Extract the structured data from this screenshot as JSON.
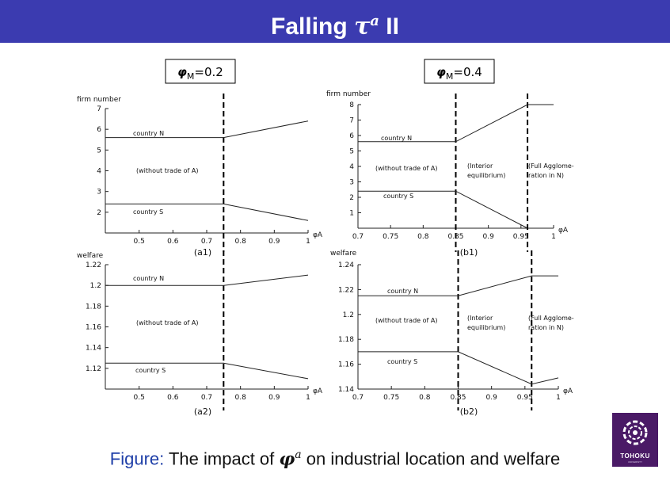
{
  "title": {
    "main": "Falling",
    "tau": "τ",
    "sup": "a",
    "suffix": "II"
  },
  "caption": {
    "label": "Figure:",
    "before": " The impact of ",
    "phi": "φ",
    "sup": "a",
    "after": " on industrial location and welfare"
  },
  "logo": {
    "name": "TOHOKU",
    "sub": "UNIVERSITY"
  },
  "colors": {
    "title_bg": "#3b3bb0",
    "caption_label": "#1f3fa8",
    "logo_bg": "#4a1a66"
  },
  "chart_data": [
    {
      "id": "a1",
      "type": "line",
      "panel_label": "(a1)",
      "param_label": "φM=0.2",
      "ylabel": "firm number",
      "xlabel": "φA",
      "xlim": [
        0.4,
        1.0
      ],
      "ylim": [
        1,
        7
      ],
      "xticks": [
        "0.5",
        "0.6",
        "0.7",
        "0.8",
        "0.9",
        "1"
      ],
      "yticks": [
        "2",
        "3",
        "4",
        "5",
        "6",
        "7"
      ],
      "vlines": [
        0.75
      ],
      "series": [
        {
          "name": "country N",
          "x": [
            0.4,
            0.75,
            1.0
          ],
          "y": [
            5.6,
            5.6,
            6.4
          ]
        },
        {
          "name": "country S",
          "x": [
            0.4,
            0.75,
            1.0
          ],
          "y": [
            2.4,
            2.4,
            1.6
          ]
        }
      ],
      "annotations": [
        "(without trade of A)"
      ]
    },
    {
      "id": "b1",
      "type": "line",
      "panel_label": "(b1)",
      "param_label": "φM=0.4",
      "ylabel": "firm number",
      "xlabel": "φA",
      "xlim": [
        0.7,
        1.0
      ],
      "ylim": [
        0,
        8
      ],
      "xticks": [
        "0.7",
        "0.75",
        "0.8",
        "0.85",
        "0.9",
        "0.95",
        "1"
      ],
      "yticks": [
        "1",
        "2",
        "3",
        "4",
        "5",
        "6",
        "7",
        "8"
      ],
      "vlines": [
        0.85,
        0.96
      ],
      "series": [
        {
          "name": "country N",
          "x": [
            0.7,
            0.85,
            0.96,
            1.0
          ],
          "y": [
            5.6,
            5.6,
            8.0,
            8.0
          ]
        },
        {
          "name": "country S",
          "x": [
            0.7,
            0.85,
            0.96
          ],
          "y": [
            2.4,
            2.4,
            0.0
          ]
        }
      ],
      "annotations": [
        "(without trade of A)",
        "(Interior",
        "equilibrium)",
        "(Full Agglome-",
        "ration in N)"
      ]
    },
    {
      "id": "a2",
      "type": "line",
      "panel_label": "(a2)",
      "ylabel": "welfare",
      "xlabel": "φA",
      "xlim": [
        0.4,
        1.0
      ],
      "ylim": [
        1.1,
        1.22
      ],
      "xticks": [
        "0.5",
        "0.6",
        "0.7",
        "0.8",
        "0.9",
        "1"
      ],
      "yticks": [
        "1.12",
        "1.14",
        "1.16",
        "1.18",
        "1.2",
        "1.22"
      ],
      "vlines": [
        0.75
      ],
      "series": [
        {
          "name": "country N",
          "x": [
            0.4,
            0.75,
            1.0
          ],
          "y": [
            1.2,
            1.2,
            1.21
          ]
        },
        {
          "name": "country S",
          "x": [
            0.4,
            0.75,
            1.0
          ],
          "y": [
            1.125,
            1.125,
            1.11
          ]
        }
      ],
      "annotations": [
        "(without trade of A)"
      ]
    },
    {
      "id": "b2",
      "type": "line",
      "panel_label": "(b2)",
      "ylabel": "welfare",
      "xlabel": "φA",
      "xlim": [
        0.7,
        1.0
      ],
      "ylim": [
        1.14,
        1.24
      ],
      "xticks": [
        "0.7",
        "0.75",
        "0.8",
        "0.85",
        "0.9",
        "0.95",
        "1"
      ],
      "yticks": [
        "1.14",
        "1.16",
        "1.18",
        "1.2",
        "1.22",
        "1.24"
      ],
      "vlines": [
        0.85,
        0.96
      ],
      "series": [
        {
          "name": "country N",
          "x": [
            0.7,
            0.85,
            0.96,
            1.0
          ],
          "y": [
            1.215,
            1.215,
            1.231,
            1.231
          ]
        },
        {
          "name": "country S",
          "x": [
            0.7,
            0.85,
            0.96,
            1.0
          ],
          "y": [
            1.17,
            1.17,
            1.144,
            1.149
          ]
        }
      ],
      "annotations": [
        "(without trade of A)",
        "(Interior",
        "equilibrium)",
        "(Full Agglome-",
        "ration in N)"
      ]
    }
  ]
}
